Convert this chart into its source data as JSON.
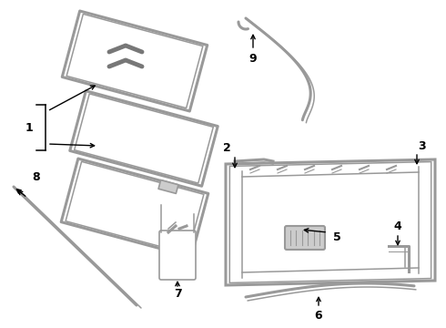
{
  "background_color": "#ffffff",
  "line_color": "#999999",
  "text_color": "#000000",
  "label_fontsize": 9,
  "lw_thick": 2.2,
  "lw_thin": 1.1,
  "lw_label": 1.0
}
